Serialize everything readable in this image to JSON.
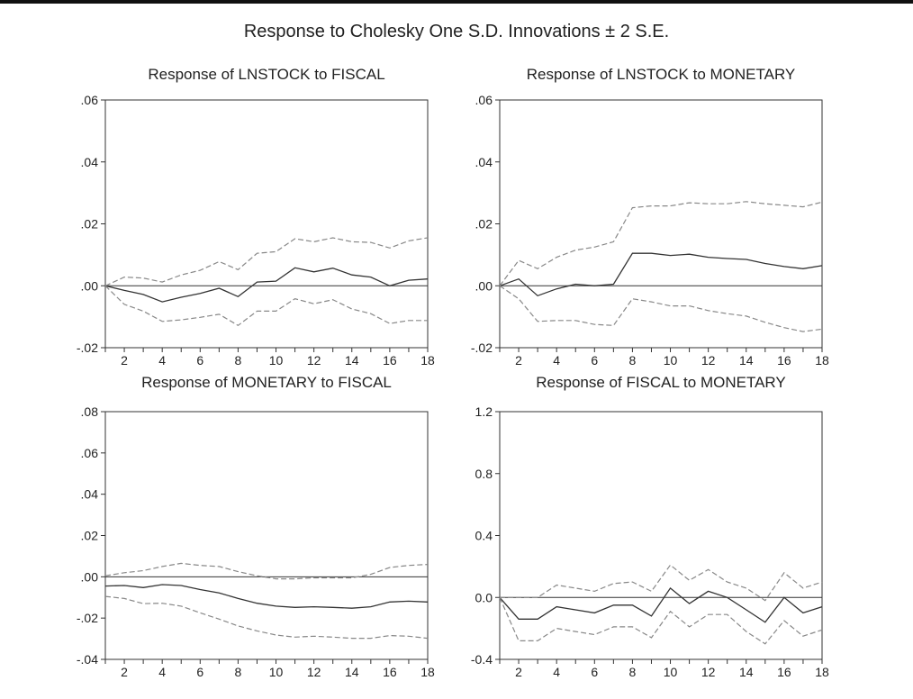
{
  "figure_title": "Response to Cholesky One S.D. Innovations ± 2 S.E.",
  "chart_data": [
    {
      "type": "line",
      "title": "Response of LNSTOCK to FISCAL",
      "x": [
        1,
        2,
        3,
        4,
        5,
        6,
        7,
        8,
        9,
        10,
        11,
        12,
        13,
        14,
        15,
        16,
        17,
        18
      ],
      "xticks": [
        "2",
        "4",
        "6",
        "8",
        "10",
        "12",
        "14",
        "16",
        "18"
      ],
      "yticks": [
        ".06",
        ".04",
        ".02",
        ".00",
        "-.02"
      ],
      "ylim": [
        -0.02,
        0.06
      ],
      "series": [
        {
          "role": "response",
          "values": [
            0.0,
            -0.0015,
            -0.0028,
            -0.0052,
            -0.0037,
            -0.0025,
            -0.0008,
            -0.0035,
            0.0012,
            0.0015,
            0.0058,
            0.0045,
            0.0057,
            0.0035,
            0.0028,
            0.0,
            0.0018,
            0.0022
          ]
        },
        {
          "role": "upper",
          "values": [
            0.0,
            0.0028,
            0.0025,
            0.0012,
            0.0035,
            0.005,
            0.0078,
            0.0052,
            0.0105,
            0.011,
            0.0152,
            0.0142,
            0.0155,
            0.0142,
            0.014,
            0.0122,
            0.0145,
            0.0155
          ]
        },
        {
          "role": "lower",
          "values": [
            0.0,
            -0.006,
            -0.0082,
            -0.0115,
            -0.011,
            -0.0102,
            -0.0092,
            -0.0128,
            -0.0082,
            -0.0082,
            -0.0042,
            -0.0058,
            -0.0045,
            -0.0075,
            -0.009,
            -0.0122,
            -0.0112,
            -0.0112
          ]
        }
      ]
    },
    {
      "type": "line",
      "title": "Response of LNSTOCK to MONETARY",
      "x": [
        1,
        2,
        3,
        4,
        5,
        6,
        7,
        8,
        9,
        10,
        11,
        12,
        13,
        14,
        15,
        16,
        17,
        18
      ],
      "xticks": [
        "2",
        "4",
        "6",
        "8",
        "10",
        "12",
        "14",
        "16",
        "18"
      ],
      "yticks": [
        ".06",
        ".04",
        ".02",
        ".00",
        "-.02"
      ],
      "ylim": [
        -0.02,
        0.06
      ],
      "series": [
        {
          "role": "response",
          "values": [
            0.0,
            0.0022,
            -0.0032,
            -0.001,
            0.0005,
            0.0,
            0.0005,
            0.0105,
            0.0105,
            0.0098,
            0.0102,
            0.0092,
            0.0088,
            0.0085,
            0.0072,
            0.0062,
            0.0055,
            0.0065
          ]
        },
        {
          "role": "upper",
          "values": [
            0.0,
            0.0082,
            0.0055,
            0.0092,
            0.0115,
            0.0125,
            0.0142,
            0.0252,
            0.0258,
            0.0258,
            0.0268,
            0.0265,
            0.0265,
            0.0272,
            0.0265,
            0.026,
            0.0255,
            0.027
          ]
        },
        {
          "role": "lower",
          "values": [
            0.0,
            -0.0042,
            -0.0115,
            -0.0112,
            -0.0112,
            -0.0125,
            -0.0128,
            -0.0042,
            -0.0052,
            -0.0065,
            -0.0065,
            -0.008,
            -0.009,
            -0.0098,
            -0.0118,
            -0.0135,
            -0.0148,
            -0.014
          ]
        }
      ]
    },
    {
      "type": "line",
      "title": "Response of MONETARY to FISCAL",
      "x": [
        1,
        2,
        3,
        4,
        5,
        6,
        7,
        8,
        9,
        10,
        11,
        12,
        13,
        14,
        15,
        16,
        17,
        18
      ],
      "xticks": [
        "2",
        "4",
        "6",
        "8",
        "10",
        "12",
        "14",
        "16",
        "18"
      ],
      "yticks": [
        ".08",
        ".06",
        ".04",
        ".02",
        ".00",
        "-.02",
        "-.04"
      ],
      "ylim": [
        -0.04,
        0.08
      ],
      "series": [
        {
          "role": "response",
          "values": [
            -0.0045,
            -0.0042,
            -0.0052,
            -0.0038,
            -0.0042,
            -0.0062,
            -0.0078,
            -0.0105,
            -0.0128,
            -0.0142,
            -0.0148,
            -0.0145,
            -0.0148,
            -0.0152,
            -0.0145,
            -0.0122,
            -0.0118,
            -0.0122
          ]
        },
        {
          "role": "upper",
          "values": [
            0.0005,
            0.002,
            0.003,
            0.005,
            0.0065,
            0.0055,
            0.005,
            0.0025,
            0.0005,
            -0.001,
            -0.001,
            -0.0005,
            -0.0005,
            -0.0005,
            0.0012,
            0.0045,
            0.0055,
            0.006
          ]
        },
        {
          "role": "lower",
          "values": [
            -0.0095,
            -0.0105,
            -0.013,
            -0.0128,
            -0.0142,
            -0.0175,
            -0.0205,
            -0.0238,
            -0.0262,
            -0.0282,
            -0.0292,
            -0.0288,
            -0.0292,
            -0.0298,
            -0.0298,
            -0.0285,
            -0.0288,
            -0.0298
          ]
        }
      ]
    },
    {
      "type": "line",
      "title": "Response of FISCAL to MONETARY",
      "x": [
        1,
        2,
        3,
        4,
        5,
        6,
        7,
        8,
        9,
        10,
        11,
        12,
        13,
        14,
        15,
        16,
        17,
        18
      ],
      "xticks": [
        "2",
        "4",
        "6",
        "8",
        "10",
        "12",
        "14",
        "16",
        "18"
      ],
      "yticks": [
        "1.2",
        "0.8",
        "0.4",
        "0.0",
        "-0.4"
      ],
      "ylim": [
        -0.4,
        1.2
      ],
      "series": [
        {
          "role": "response",
          "values": [
            0.0,
            -0.14,
            -0.14,
            -0.06,
            -0.08,
            -0.1,
            -0.05,
            -0.05,
            -0.12,
            0.06,
            -0.04,
            0.04,
            0.0,
            -0.08,
            -0.16,
            0.0,
            -0.1,
            -0.06
          ]
        },
        {
          "role": "upper",
          "values": [
            0.0,
            0.0,
            0.0,
            0.08,
            0.06,
            0.04,
            0.09,
            0.1,
            0.04,
            0.21,
            0.11,
            0.18,
            0.1,
            0.06,
            -0.02,
            0.16,
            0.06,
            0.1
          ]
        },
        {
          "role": "lower",
          "values": [
            0.0,
            -0.28,
            -0.28,
            -0.2,
            -0.22,
            -0.24,
            -0.19,
            -0.19,
            -0.26,
            -0.09,
            -0.19,
            -0.11,
            -0.11,
            -0.22,
            -0.3,
            -0.15,
            -0.25,
            -0.21
          ]
        }
      ]
    }
  ]
}
